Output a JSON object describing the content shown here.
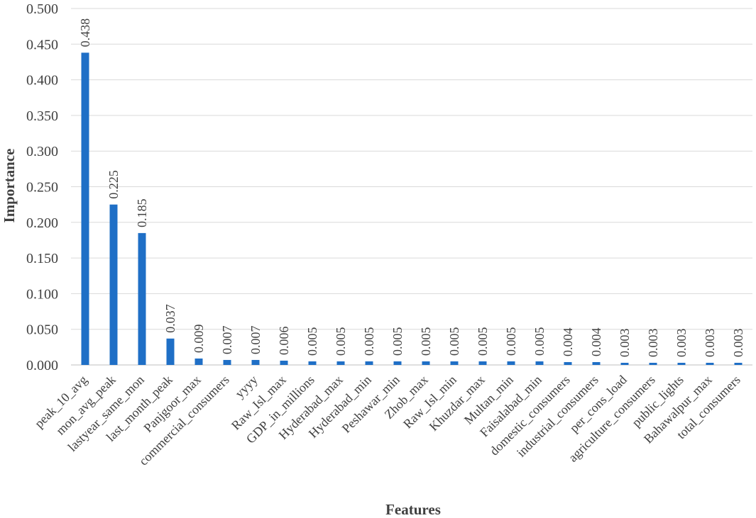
{
  "chart_data": {
    "type": "bar",
    "title": "",
    "xlabel": "Features",
    "ylabel": "Importance",
    "ylim": [
      0,
      0.5
    ],
    "yticks": [
      "0.000",
      "0.050",
      "0.100",
      "0.150",
      "0.200",
      "0.250",
      "0.300",
      "0.350",
      "0.400",
      "0.450",
      "0.500"
    ],
    "grid": true,
    "bar_color": "#1f6fc6",
    "categories": [
      "peak_10_avg",
      "mon_avg_peak",
      "lastyear_same_mon",
      "last_month_peak",
      "Panjgoor_max",
      "commercial_consumers",
      "yyyy",
      "Raw_Isl_max",
      "GDP_in_millions",
      "Hyderabad_max",
      "Hyderabad_min",
      "Peshawar_min",
      "Zhob_max",
      "Raw_Isl_min",
      "Khuzdar_max",
      "Multan_min",
      "Faisalabad_min",
      "domestic_consumers",
      "industrial_consumers",
      "per_cons_load",
      "agriculture_consumers",
      "public_lights",
      "Bahawalpur_max",
      "total_consumers"
    ],
    "values": [
      0.438,
      0.225,
      0.185,
      0.037,
      0.009,
      0.007,
      0.007,
      0.006,
      0.005,
      0.005,
      0.005,
      0.005,
      0.005,
      0.005,
      0.005,
      0.005,
      0.005,
      0.004,
      0.004,
      0.003,
      0.003,
      0.003,
      0.003,
      0.003
    ],
    "data_labels": [
      "0.438",
      "0.225",
      "0.185",
      "0.037",
      "0.009",
      "0.007",
      "0.007",
      "0.006",
      "0.005",
      "0.005",
      "0.005",
      "0.005",
      "0.005",
      "0.005",
      "0.005",
      "0.005",
      "0.005",
      "0.004",
      "0.004",
      "0.003",
      "0.003",
      "0.003",
      "0.003",
      "0.003"
    ]
  }
}
